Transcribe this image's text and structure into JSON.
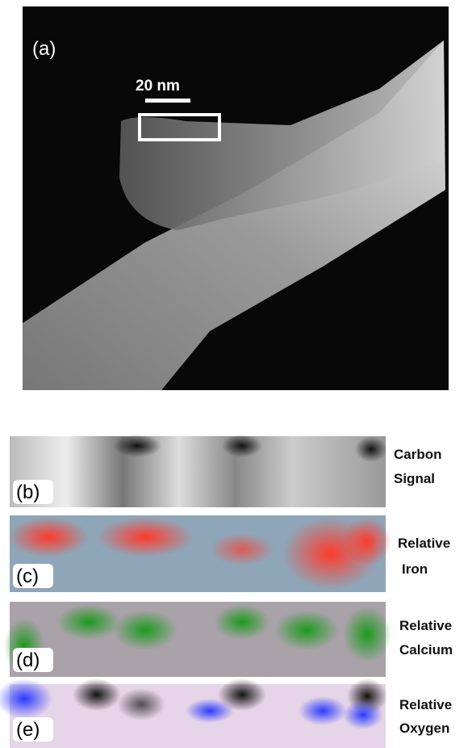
{
  "panels": [
    {
      "label": "(a)",
      "scale_bar": "20 nm"
    },
    {
      "label": "(b)",
      "caption": [
        "Carbon",
        "Signal"
      ]
    },
    {
      "label": "(c)",
      "caption": [
        "Relative",
        "Iron"
      ]
    },
    {
      "label": "(d)",
      "caption": [
        "Relative",
        "Calcium"
      ]
    },
    {
      "label": "(e)",
      "caption": [
        "Relative",
        "Oxygen"
      ]
    }
  ]
}
